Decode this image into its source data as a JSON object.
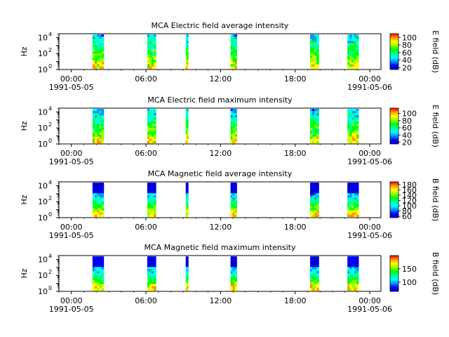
{
  "chart_data": [
    {
      "type": "heatmap",
      "title": "MCA  Electric field average intensity",
      "ylabel": "Hz",
      "yscale": "log",
      "ylim": [
        1,
        30000
      ],
      "y_ticks": [
        {
          "value": 1,
          "base": "10",
          "exp": "0"
        },
        {
          "value": 100,
          "base": "10",
          "exp": "2"
        },
        {
          "value": 10000,
          "base": "10",
          "exp": "4"
        }
      ],
      "x_ticks": [
        {
          "hours": 0,
          "label": "00:00",
          "date": "1991-05-05"
        },
        {
          "hours": 6,
          "label": "06:00",
          "date": ""
        },
        {
          "hours": 12,
          "label": "12:00",
          "date": ""
        },
        {
          "hours": 18,
          "label": "18:00",
          "date": ""
        },
        {
          "hours": 24,
          "label": "00:00",
          "date": "1991-05-06"
        }
      ],
      "x_range_hours": [
        -1,
        24.9
      ],
      "data_segments_hours": [
        [
          1.7,
          2.6
        ],
        [
          6.1,
          6.8
        ],
        [
          9.2,
          9.4
        ],
        [
          12.8,
          13.3
        ],
        [
          19.2,
          19.9
        ],
        [
          22.2,
          23.1
        ]
      ],
      "colorbar": {
        "label": "E field (dB)",
        "range": [
          15,
          110
        ],
        "ticks": [
          20,
          40,
          60,
          80,
          100
        ]
      }
    },
    {
      "type": "heatmap",
      "title": "MCA  Electric field maximum intensity",
      "ylabel": "Hz",
      "yscale": "log",
      "ylim": [
        1,
        30000
      ],
      "y_ticks": [
        {
          "value": 1,
          "base": "10",
          "exp": "0"
        },
        {
          "value": 100,
          "base": "10",
          "exp": "2"
        },
        {
          "value": 10000,
          "base": "10",
          "exp": "4"
        }
      ],
      "x_ticks": [
        {
          "hours": 0,
          "label": "00:00",
          "date": "1991-05-05"
        },
        {
          "hours": 6,
          "label": "06:00",
          "date": ""
        },
        {
          "hours": 12,
          "label": "12:00",
          "date": ""
        },
        {
          "hours": 18,
          "label": "18:00",
          "date": ""
        },
        {
          "hours": 24,
          "label": "00:00",
          "date": "1991-05-06"
        }
      ],
      "x_range_hours": [
        -1,
        24.9
      ],
      "data_segments_hours": [
        [
          1.7,
          2.6
        ],
        [
          6.1,
          6.8
        ],
        [
          9.2,
          9.4
        ],
        [
          12.8,
          13.3
        ],
        [
          19.2,
          19.9
        ],
        [
          22.2,
          23.1
        ]
      ],
      "colorbar": {
        "label": "E field (dB)",
        "range": [
          15,
          115
        ],
        "ticks": [
          20,
          40,
          60,
          80,
          100
        ]
      }
    },
    {
      "type": "heatmap",
      "title": "MCA  Magnetic field average intensity",
      "ylabel": "Hz",
      "yscale": "log",
      "ylim": [
        1,
        30000
      ],
      "y_ticks": [
        {
          "value": 1,
          "base": "10",
          "exp": "0"
        },
        {
          "value": 100,
          "base": "10",
          "exp": "2"
        },
        {
          "value": 10000,
          "base": "10",
          "exp": "4"
        }
      ],
      "x_ticks": [
        {
          "hours": 0,
          "label": "00:00",
          "date": "1991-05-05"
        },
        {
          "hours": 6,
          "label": "06:00",
          "date": ""
        },
        {
          "hours": 12,
          "label": "12:00",
          "date": ""
        },
        {
          "hours": 18,
          "label": "18:00",
          "date": ""
        },
        {
          "hours": 24,
          "label": "00:00",
          "date": "1991-05-06"
        }
      ],
      "x_range_hours": [
        -1,
        24.9
      ],
      "data_segments_hours": [
        [
          1.7,
          2.6
        ],
        [
          6.1,
          6.8
        ],
        [
          9.2,
          9.4
        ],
        [
          12.8,
          13.3
        ],
        [
          19.2,
          19.9
        ],
        [
          22.2,
          23.1
        ]
      ],
      "colorbar": {
        "label": "B field (dB)",
        "range": [
          55,
          190
        ],
        "ticks": [
          60,
          80,
          100,
          120,
          140,
          160,
          180
        ]
      }
    },
    {
      "type": "heatmap",
      "title": "MCA  Magnetic field maximum intensity",
      "ylabel": "Hz",
      "yscale": "log",
      "ylim": [
        1,
        30000
      ],
      "y_ticks": [
        {
          "value": 1,
          "base": "10",
          "exp": "0"
        },
        {
          "value": 100,
          "base": "10",
          "exp": "2"
        },
        {
          "value": 10000,
          "base": "10",
          "exp": "4"
        }
      ],
      "x_ticks": [
        {
          "hours": 0,
          "label": "00:00",
          "date": "1991-05-05"
        },
        {
          "hours": 6,
          "label": "06:00",
          "date": ""
        },
        {
          "hours": 12,
          "label": "12:00",
          "date": ""
        },
        {
          "hours": 18,
          "label": "18:00",
          "date": ""
        },
        {
          "hours": 24,
          "label": "00:00",
          "date": "1991-05-06"
        }
      ],
      "x_range_hours": [
        -1,
        24.9
      ],
      "data_segments_hours": [
        [
          1.7,
          2.6
        ],
        [
          6.1,
          6.8
        ],
        [
          9.2,
          9.4
        ],
        [
          12.8,
          13.3
        ],
        [
          19.2,
          19.9
        ],
        [
          22.2,
          23.1
        ]
      ],
      "colorbar": {
        "label": "B field (dB)",
        "range": [
          65,
          200
        ],
        "ticks": [
          100,
          150
        ]
      }
    }
  ],
  "colormap": [
    "#0000c8",
    "#0000ff",
    "#0096ff",
    "#00ffff",
    "#00ff96",
    "#00ff00",
    "#96ff00",
    "#ffff00",
    "#ff9600",
    "#ff0000"
  ]
}
